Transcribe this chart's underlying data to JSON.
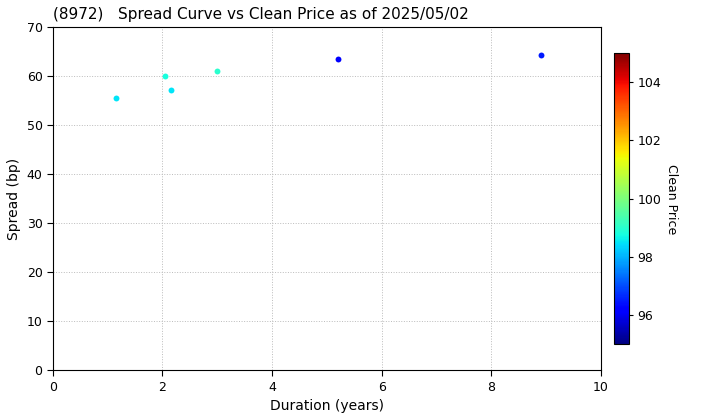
{
  "title": "(8972)   Spread Curve vs Clean Price as of 2025/05/02",
  "xlabel": "Duration (years)",
  "ylabel": "Spread (bp)",
  "colorbar_label": "Clean Price",
  "xlim": [
    0,
    10
  ],
  "ylim": [
    0,
    70
  ],
  "xticks": [
    0,
    2,
    4,
    6,
    8,
    10
  ],
  "yticks": [
    0,
    10,
    20,
    30,
    40,
    50,
    60,
    70
  ],
  "colorbar_ticks": [
    96,
    98,
    100,
    102,
    104
  ],
  "colorbar_vmin": 95,
  "colorbar_vmax": 105,
  "points": [
    {
      "duration": 1.15,
      "spread": 55.5,
      "clean_price": 98.5
    },
    {
      "duration": 2.05,
      "spread": 60.0,
      "clean_price": 98.8
    },
    {
      "duration": 2.15,
      "spread": 57.2,
      "clean_price": 98.5
    },
    {
      "duration": 3.0,
      "spread": 61.0,
      "clean_price": 99.0
    },
    {
      "duration": 5.2,
      "spread": 63.5,
      "clean_price": 96.2
    },
    {
      "duration": 8.9,
      "spread": 64.3,
      "clean_price": 96.5
    }
  ],
  "marker_size": 18,
  "background_color": "#ffffff",
  "grid_color": "#bbbbbb",
  "grid_linestyle": "dotted",
  "figsize": [
    7.2,
    4.2
  ],
  "dpi": 100
}
